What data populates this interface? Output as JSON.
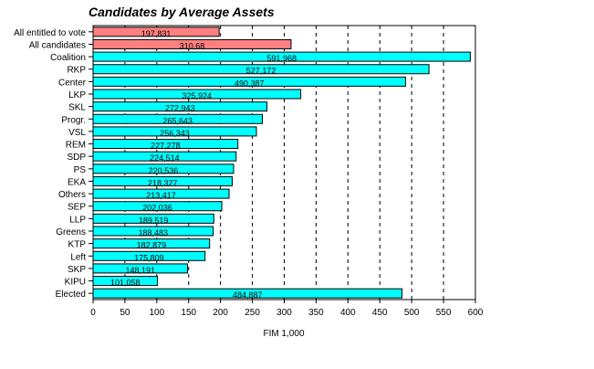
{
  "chart_data": {
    "type": "bar",
    "orientation": "horizontal",
    "title": "Candidates by Average Assets",
    "xlabel": "FIM 1,000",
    "ylabel": "",
    "xlim": [
      0,
      600
    ],
    "xticks": [
      0,
      50,
      100,
      150,
      200,
      250,
      300,
      350,
      400,
      450,
      500,
      550,
      600
    ],
    "grid": "vertical dashed",
    "categories": [
      "All entitled to vote",
      "All candidates",
      "Coalition",
      "RKP",
      "Center",
      "LKP",
      "SKL",
      "Progr.",
      "VSL",
      "REM",
      "SDP",
      "PS",
      "EKA",
      "Others",
      "SEP",
      "LLP",
      "Greens",
      "KTP",
      "Left",
      "SKP",
      "KIPU",
      "Elected"
    ],
    "values": [
      197.831,
      310.68,
      591.968,
      527.172,
      490.387,
      325.924,
      272.943,
      265.643,
      256.343,
      227.278,
      224.514,
      220.536,
      218.327,
      213.417,
      202.036,
      189.519,
      188.483,
      182.879,
      175.809,
      148.191,
      101.058,
      484.887
    ],
    "value_labels": [
      "197,831",
      "310,68",
      "591,968",
      "527,172",
      "490,387",
      "325,924",
      "272,943",
      "265,643",
      "256,343",
      "227,278",
      "224,514",
      "220,536",
      "218,327",
      "213,417",
      "202,036",
      "189,519",
      "188,483",
      "182,879",
      "175,809",
      "148,191",
      "101,058",
      "484,887"
    ],
    "colors": {
      "reference": "#ff8080",
      "group": "#00ffff",
      "outline": "#000000"
    },
    "reference_count": 2
  }
}
